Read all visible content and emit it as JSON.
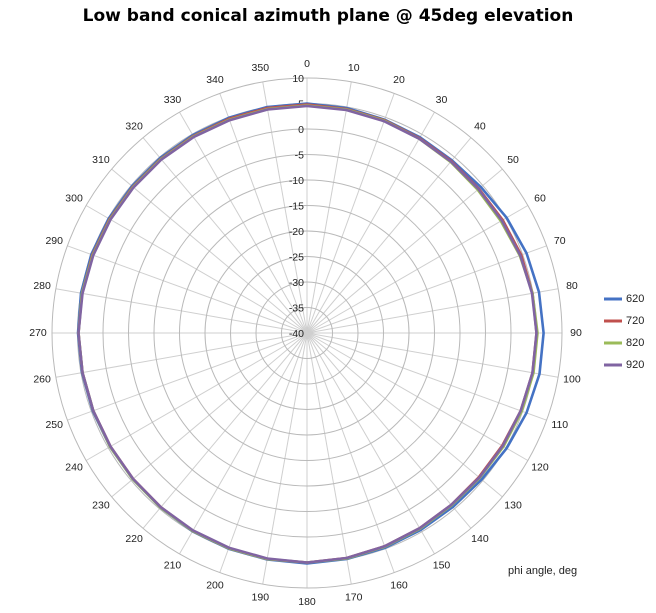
{
  "chart_data": {
    "type": "line",
    "subtype": "radar",
    "title": "Low band conical azimuth plane @ 45deg elevation",
    "angular_axis_label": "phi angle, deg",
    "angular_ticks": [
      0,
      10,
      20,
      30,
      40,
      50,
      60,
      70,
      80,
      90,
      100,
      110,
      120,
      130,
      140,
      150,
      160,
      170,
      180,
      190,
      200,
      210,
      220,
      230,
      240,
      250,
      260,
      270,
      280,
      290,
      300,
      310,
      320,
      330,
      340,
      350
    ],
    "radial_ticks": [
      10,
      5,
      0,
      -5,
      -10,
      -15,
      -20,
      -25,
      -30,
      -35,
      -40
    ],
    "rlim": [
      -40,
      10
    ],
    "grid": true,
    "legend_position": "right",
    "x": [
      0,
      10,
      20,
      30,
      40,
      50,
      60,
      70,
      80,
      90,
      100,
      110,
      120,
      130,
      140,
      150,
      160,
      170,
      180,
      190,
      200,
      210,
      220,
      230,
      240,
      250,
      260,
      270,
      280,
      290,
      300,
      310,
      320,
      330,
      340,
      350
    ],
    "series": [
      {
        "name": "620",
        "color": "#4472C4",
        "values": [
          5,
          4.8,
          4.5,
          4.3,
          4.2,
          4.5,
          5.2,
          5.8,
          6.2,
          6.4,
          6.3,
          5.8,
          5.2,
          4.7,
          4.5,
          4.6,
          4.8,
          5,
          5.2,
          5.1,
          5,
          4.9,
          4.7,
          4.6,
          4.6,
          4.7,
          4.8,
          4.9,
          5,
          5,
          4.9,
          4.8,
          4.8,
          4.8,
          4.9,
          5
        ]
      },
      {
        "name": "720",
        "color": "#C0504D",
        "values": [
          4.8,
          4.6,
          4.4,
          4.1,
          4,
          4,
          4.3,
          4.7,
          4.9,
          5,
          4.9,
          4.6,
          4.2,
          4,
          4,
          4.2,
          4.5,
          4.8,
          5,
          5,
          4.9,
          4.8,
          4.6,
          4.5,
          4.5,
          4.6,
          4.7,
          4.8,
          4.8,
          4.8,
          4.7,
          4.6,
          4.6,
          4.6,
          4.7,
          4.8
        ]
      },
      {
        "name": "820",
        "color": "#9BBB59",
        "values": [
          4.6,
          4.5,
          4.3,
          4,
          3.8,
          3.7,
          3.9,
          4.4,
          4.9,
          5.2,
          5.1,
          4.8,
          4.5,
          4.2,
          4.1,
          4.3,
          4.6,
          4.9,
          5,
          5,
          4.9,
          4.8,
          4.7,
          4.6,
          4.6,
          4.6,
          4.7,
          4.8,
          4.8,
          4.7,
          4.6,
          4.5,
          4.5,
          4.5,
          4.5,
          4.6
        ]
      },
      {
        "name": "920",
        "color": "#8064A2",
        "values": [
          4.5,
          4.4,
          4.2,
          4,
          3.9,
          3.9,
          4.1,
          4.5,
          4.8,
          5,
          4.9,
          4.6,
          4.3,
          4.1,
          4,
          4.2,
          4.5,
          4.8,
          5,
          4.9,
          4.8,
          4.7,
          4.6,
          4.5,
          4.5,
          4.6,
          4.7,
          4.8,
          4.7,
          4.6,
          4.5,
          4.4,
          4.4,
          4.4,
          4.4,
          4.5
        ]
      }
    ]
  }
}
